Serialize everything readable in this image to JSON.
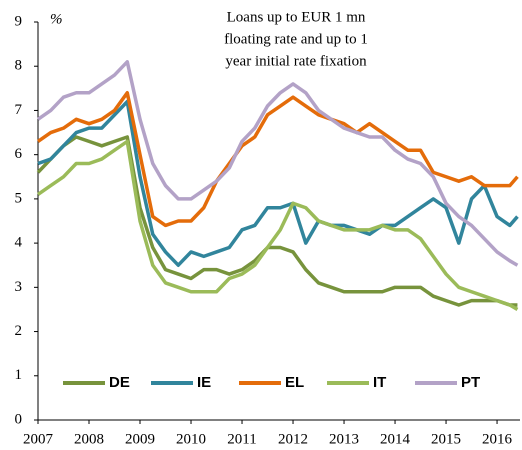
{
  "chart_data": {
    "type": "line",
    "title": [
      "Loans up to EUR 1 mn",
      "floating rate  and up to 1",
      "year initial rate fixation"
    ],
    "y_label": "%",
    "x": [
      2007,
      2007.25,
      2007.5,
      2007.75,
      2008,
      2008.25,
      2008.5,
      2008.75,
      2009,
      2009.25,
      2009.5,
      2009.75,
      2010,
      2010.25,
      2010.5,
      2010.75,
      2011,
      2011.25,
      2011.5,
      2011.75,
      2012,
      2012.25,
      2012.5,
      2012.75,
      2013,
      2013.25,
      2013.5,
      2013.75,
      2014,
      2014.25,
      2014.5,
      2014.75,
      2015,
      2015.25,
      2015.5,
      2015.75,
      2016,
      2016.25,
      2016.4
    ],
    "series": [
      {
        "name": "DE",
        "color": "#77933c",
        "values": [
          5.6,
          5.9,
          6.2,
          6.4,
          6.3,
          6.2,
          6.3,
          6.4,
          4.8,
          3.9,
          3.4,
          3.3,
          3.2,
          3.4,
          3.4,
          3.3,
          3.4,
          3.6,
          3.9,
          3.9,
          3.8,
          3.4,
          3.1,
          3.0,
          2.9,
          2.9,
          2.9,
          2.9,
          3.0,
          3.0,
          3.0,
          2.8,
          2.7,
          2.6,
          2.7,
          2.7,
          2.7,
          2.6,
          2.6
        ]
      },
      {
        "name": "IE",
        "color": "#31859c",
        "values": [
          5.8,
          5.9,
          6.2,
          6.5,
          6.6,
          6.6,
          6.9,
          7.2,
          5.5,
          4.2,
          3.8,
          3.5,
          3.8,
          3.7,
          3.8,
          3.9,
          4.3,
          4.4,
          4.8,
          4.8,
          4.9,
          4.0,
          4.5,
          4.4,
          4.4,
          4.3,
          4.2,
          4.4,
          4.4,
          4.6,
          4.8,
          5.0,
          4.8,
          4.0,
          5.0,
          5.3,
          4.6,
          4.4,
          4.6
        ]
      },
      {
        "name": "EL",
        "color": "#e46c0a",
        "values": [
          6.3,
          6.5,
          6.6,
          6.8,
          6.7,
          6.8,
          7.0,
          7.4,
          6.0,
          4.6,
          4.4,
          4.5,
          4.5,
          4.8,
          5.4,
          5.8,
          6.2,
          6.4,
          6.9,
          7.1,
          7.3,
          7.1,
          6.9,
          6.8,
          6.7,
          6.5,
          6.7,
          6.5,
          6.3,
          6.1,
          6.1,
          5.6,
          5.5,
          5.4,
          5.5,
          5.3,
          5.3,
          5.3,
          5.5
        ]
      },
      {
        "name": "IT",
        "color": "#9bbb59",
        "values": [
          5.1,
          5.3,
          5.5,
          5.8,
          5.8,
          5.9,
          6.1,
          6.3,
          4.5,
          3.5,
          3.1,
          3.0,
          2.9,
          2.9,
          2.9,
          3.2,
          3.3,
          3.5,
          3.9,
          4.3,
          4.9,
          4.8,
          4.5,
          4.4,
          4.3,
          4.3,
          4.3,
          4.4,
          4.3,
          4.3,
          4.1,
          3.7,
          3.3,
          3.0,
          2.9,
          2.8,
          2.7,
          2.6,
          2.5
        ]
      },
      {
        "name": "PT",
        "color": "#b3a2c7",
        "values": [
          6.8,
          7.0,
          7.3,
          7.4,
          7.4,
          7.6,
          7.8,
          8.1,
          6.8,
          5.8,
          5.3,
          5.0,
          5.0,
          5.2,
          5.4,
          5.7,
          6.3,
          6.6,
          7.1,
          7.4,
          7.6,
          7.4,
          7.0,
          6.8,
          6.6,
          6.5,
          6.4,
          6.4,
          6.1,
          5.9,
          5.8,
          5.5,
          4.9,
          4.6,
          4.4,
          4.1,
          3.8,
          3.6,
          3.5
        ]
      }
    ],
    "xlim": [
      2007,
      2016.45
    ],
    "xticks": [
      2007,
      2008,
      2009,
      2010,
      2011,
      2012,
      2013,
      2014,
      2015,
      2016
    ],
    "ylim": [
      0,
      9
    ],
    "yticks": [
      0,
      1,
      2,
      3,
      4,
      5,
      6,
      7,
      8,
      9
    ],
    "grid": false,
    "legend": "lower center"
  }
}
